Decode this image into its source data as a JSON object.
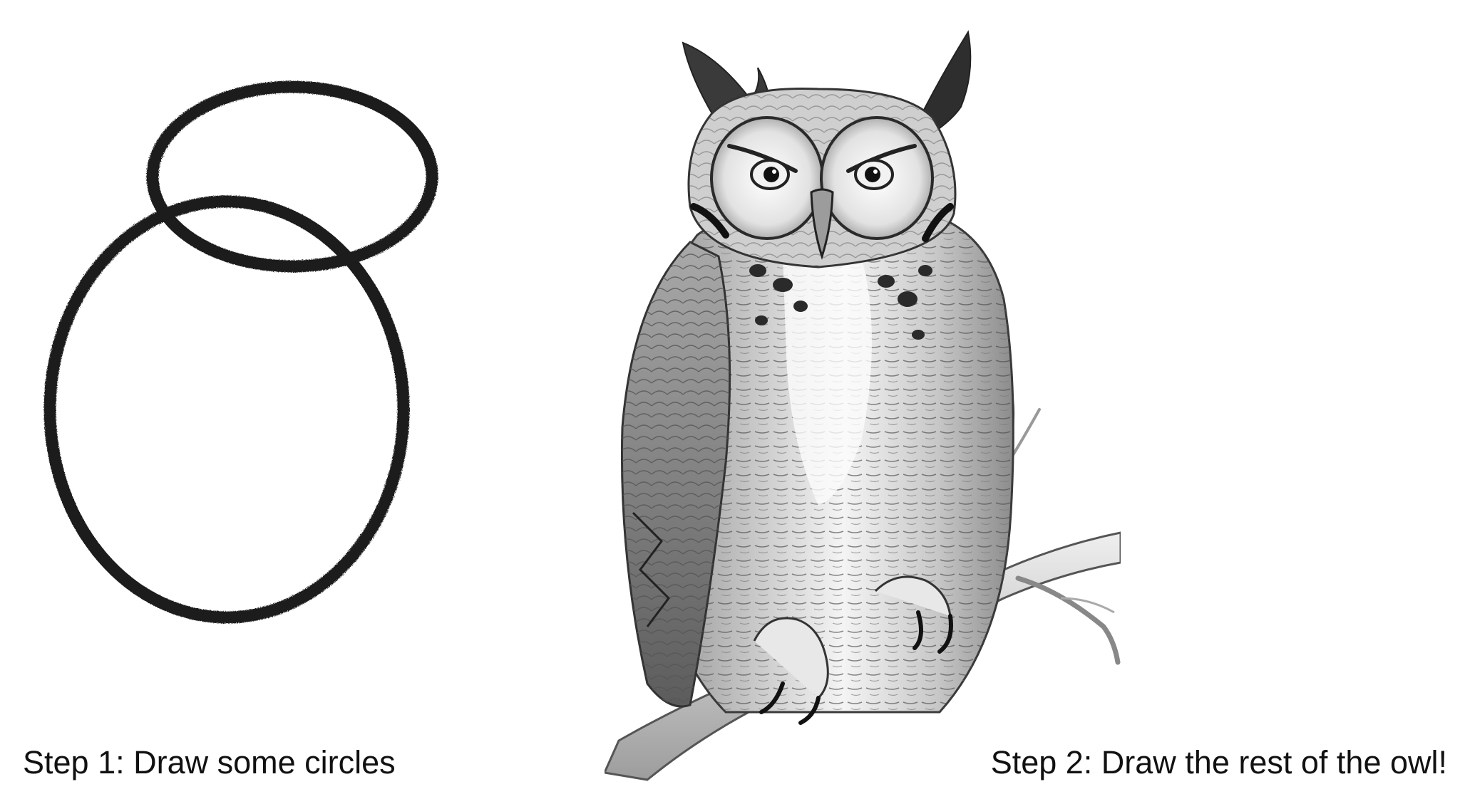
{
  "step1": {
    "caption": "Step 1: Draw some circles"
  },
  "step2": {
    "caption": "Step 2: Draw the rest of the owl!"
  },
  "colors": {
    "ink": "#1a1a1a",
    "pencil_dark": "#2b2b2b",
    "pencil_mid": "#6e6e6e",
    "pencil_light": "#b5b5b5",
    "paper": "#ffffff"
  }
}
